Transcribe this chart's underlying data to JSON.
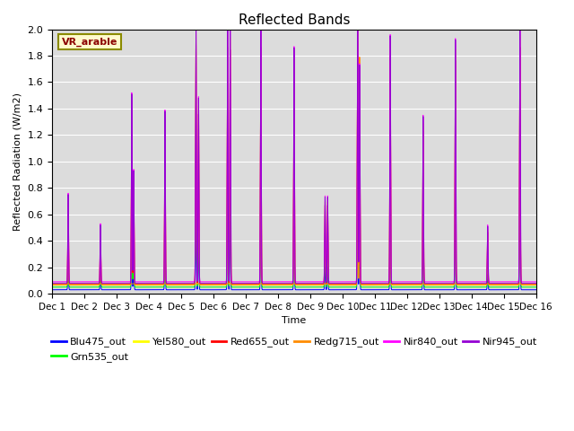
{
  "title": "Reflected Bands",
  "ylabel": "Reflected Radiation (W/m2)",
  "xlabel": "Time",
  "annotation": "VR_arable",
  "ylim": [
    0,
    2.0
  ],
  "num_days": 15,
  "series": [
    {
      "label": "Blu475_out",
      "color": "#0000FF"
    },
    {
      "label": "Grn535_out",
      "color": "#00FF00"
    },
    {
      "label": "Yel580_out",
      "color": "#FFFF00"
    },
    {
      "label": "Red655_out",
      "color": "#FF0000"
    },
    {
      "label": "Redg715_out",
      "color": "#FF8C00"
    },
    {
      "label": "Nir840_out",
      "color": "#FF00FF"
    },
    {
      "label": "Nir945_out",
      "color": "#9400D3"
    }
  ],
  "bg_color": "#DCDCDC",
  "grid_color": "white",
  "tick_label_fontsize": 7.5,
  "title_fontsize": 11,
  "tick_positions": [
    0,
    1,
    2,
    3,
    4,
    5,
    6,
    7,
    8,
    9,
    10,
    11,
    12,
    13,
    14,
    15
  ],
  "tick_labels": [
    "Dec 1",
    "Dec 2",
    "Dec 3",
    "Dec 4",
    "Dec 5",
    "Dec 6",
    "Dec 7",
    "Dec 8",
    "Dec 9",
    "Dec 10",
    "Dec 11",
    "Dec 12",
    "Dec 13",
    "Dec 14",
    "Dec 15",
    "Dec 16"
  ]
}
